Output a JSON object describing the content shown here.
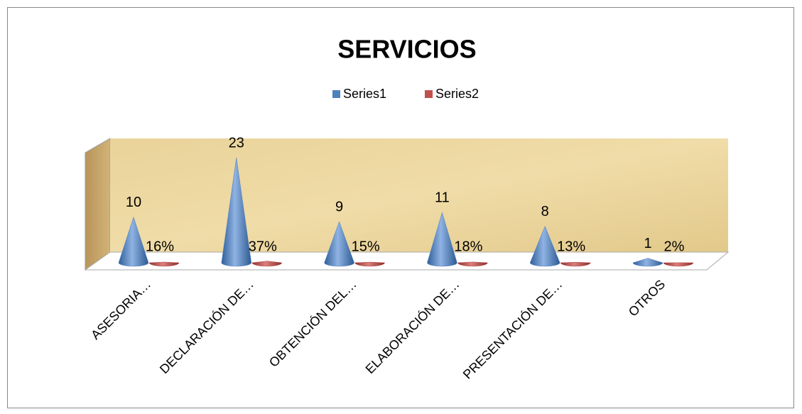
{
  "chart_data": {
    "type": "cone3d",
    "title": "SERVICIOS",
    "categories": [
      "ASESORIA…",
      "DECLARACIÓN DE…",
      "OBTENCIÓN DEL…",
      "ELABORACIÓN DE…",
      "PRESENTACIÓN DE…",
      "OTROS"
    ],
    "series": [
      {
        "name": "Series1",
        "color": "#4f81bd",
        "values": [
          10,
          23,
          9,
          11,
          8,
          1
        ]
      },
      {
        "name": "Series2",
        "color": "#c0504d",
        "values": [
          0.16,
          0.37,
          0.15,
          0.18,
          0.13,
          0.02
        ],
        "value_labels": [
          "16%",
          "37%",
          "15%",
          "18%",
          "13%",
          "2%"
        ]
      }
    ],
    "legend": "top"
  }
}
